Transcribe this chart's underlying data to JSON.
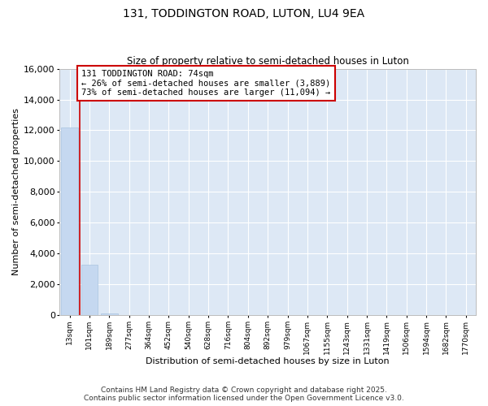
{
  "title1": "131, TODDINGTON ROAD, LUTON, LU4 9EA",
  "title2": "Size of property relative to semi-detached houses in Luton",
  "xlabel": "Distribution of semi-detached houses by size in Luton",
  "ylabel": "Number of semi-detached properties",
  "bar_color": "#c5d8f0",
  "property_line_color": "#cc0000",
  "annotation_box_color": "#cc0000",
  "categories": [
    "13sqm",
    "101sqm",
    "189sqm",
    "277sqm",
    "364sqm",
    "452sqm",
    "540sqm",
    "628sqm",
    "716sqm",
    "804sqm",
    "892sqm",
    "979sqm",
    "1067sqm",
    "1155sqm",
    "1243sqm",
    "1331sqm",
    "1419sqm",
    "1506sqm",
    "1594sqm",
    "1682sqm",
    "1770sqm"
  ],
  "values": [
    12200,
    3250,
    130,
    10,
    2,
    1,
    1,
    0,
    0,
    0,
    0,
    0,
    0,
    0,
    0,
    0,
    0,
    0,
    0,
    0,
    0
  ],
  "ylim": [
    0,
    16000
  ],
  "yticks": [
    0,
    2000,
    4000,
    6000,
    8000,
    10000,
    12000,
    14000,
    16000
  ],
  "property_bin_index": 0,
  "annotation_text": "131 TODDINGTON ROAD: 74sqm\n← 26% of semi-detached houses are smaller (3,889)\n73% of semi-detached houses are larger (11,094) →",
  "footer_text": "Contains HM Land Registry data © Crown copyright and database right 2025.\nContains public sector information licensed under the Open Government Licence v3.0.",
  "background_color": "#ffffff",
  "plot_bg_color": "#dde8f5"
}
